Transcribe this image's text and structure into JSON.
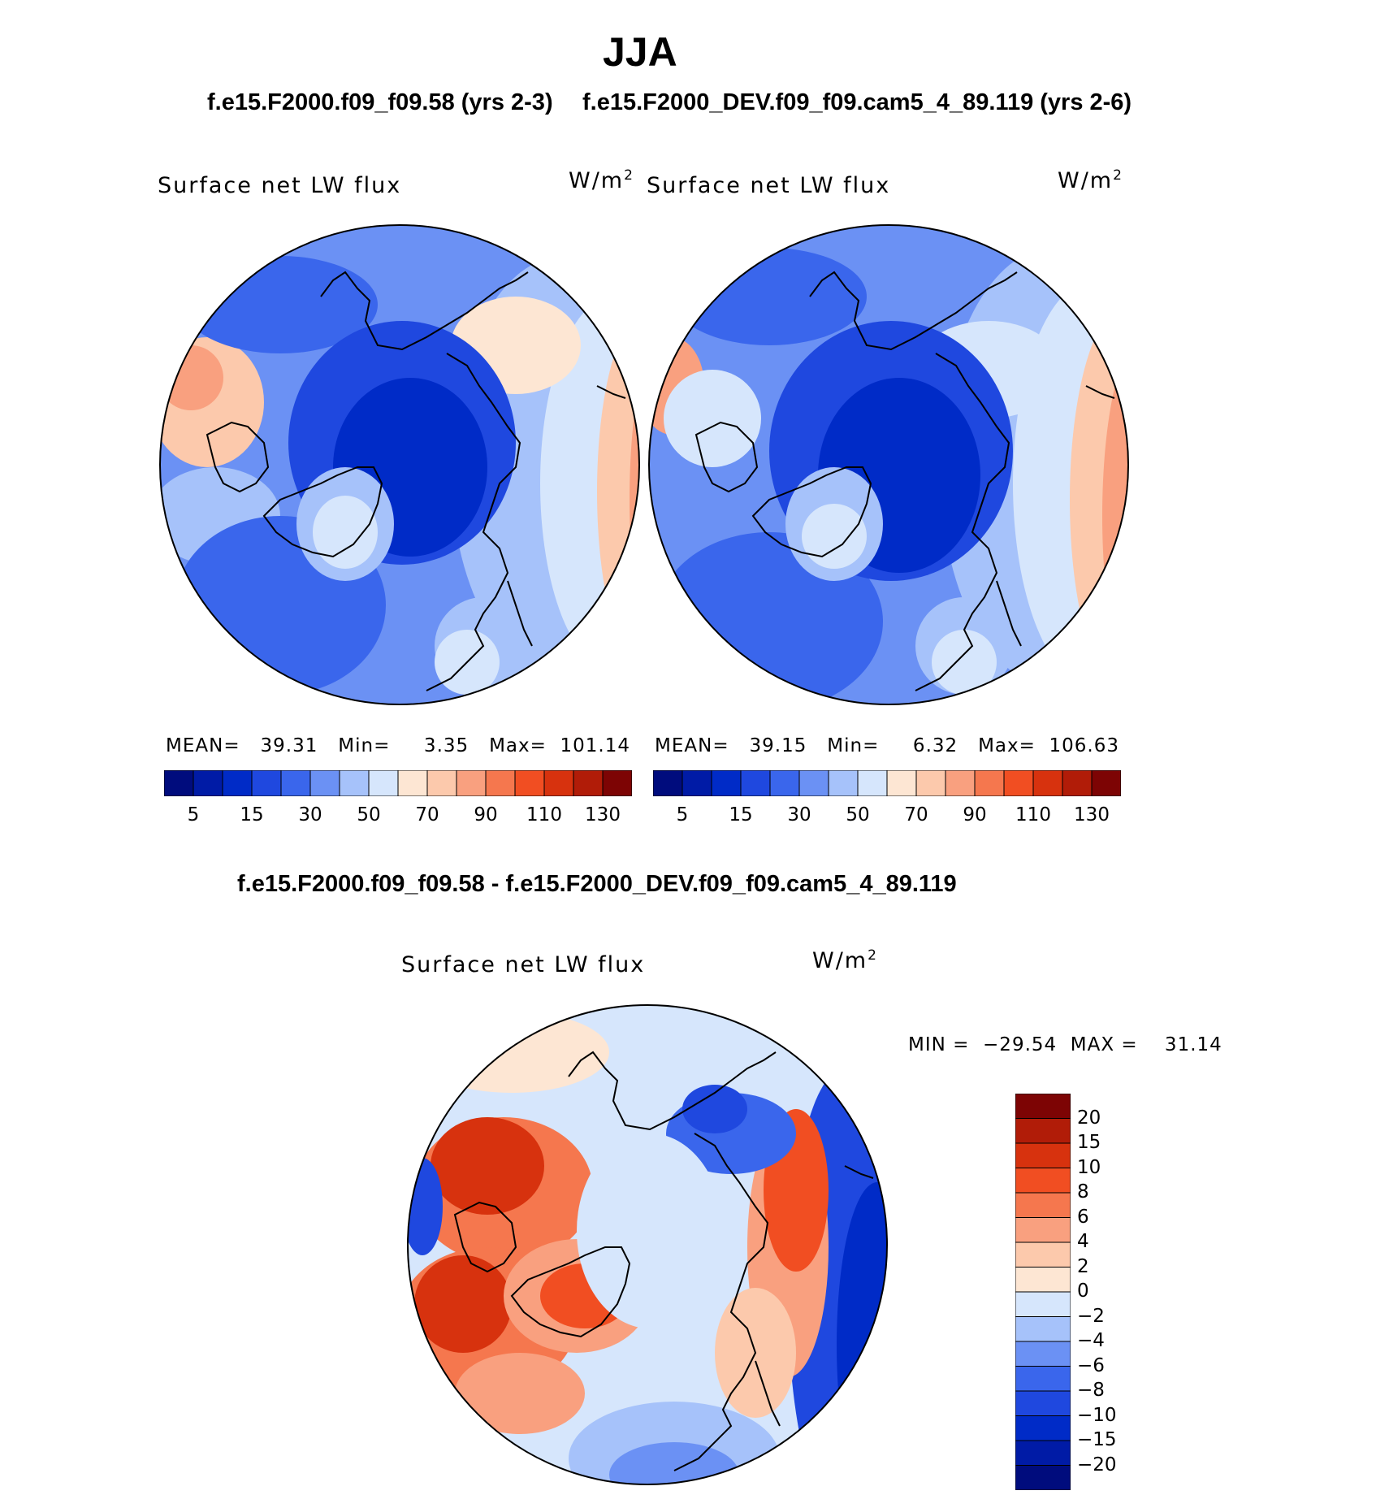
{
  "header": {
    "title": "JJA",
    "case1_title": "f.e15.F2000.f09_f09.58 (yrs 2-3)",
    "case2_title": "f.e15.F2000_DEV.f09_f09.cam5_4_89.119 (yrs 2-6)",
    "diff_title": "f.e15.F2000.f09_f09.58 - f.e15.F2000_DEV.f09_f09.cam5_4_89.119"
  },
  "panels": [
    {
      "variable": "Surface net LW flux",
      "units": "W/m",
      "units_exp": "2",
      "stats": "MEAN=   39.31   Min=     3.35   Max=  101.14"
    },
    {
      "variable": "Surface net LW flux",
      "units": "W/m",
      "units_exp": "2",
      "stats": "MEAN=   39.15   Min=     6.32   Max=  106.63"
    }
  ],
  "diff_panel": {
    "variable": "Surface net LW flux",
    "units": "W/m",
    "units_exp": "2",
    "stats": "MIN =  −29.54  MAX =    31.14"
  },
  "colorbar_abs": {
    "colors": [
      "#000c7d",
      "#001ba6",
      "#002bc7",
      "#1f48df",
      "#3a66ec",
      "#6b91f4",
      "#a6c2fa",
      "#d6e6fc",
      "#fde6d3",
      "#fcc9ac",
      "#f9a07f",
      "#f5774e",
      "#f14e22",
      "#d7320e",
      "#b11c08",
      "#7d0404"
    ],
    "ticks": [
      "5",
      "15",
      "30",
      "50",
      "70",
      "90",
      "110",
      "130"
    ]
  },
  "colorbar_diff": {
    "colors": [
      "#7d0404",
      "#b11c08",
      "#d7320e",
      "#f14e22",
      "#f5774e",
      "#f9a07f",
      "#fcc9ac",
      "#fde6d3",
      "#d6e6fc",
      "#a6c2fa",
      "#6b91f4",
      "#3a66ec",
      "#1f48df",
      "#002bc7",
      "#001ba6",
      "#000c7d"
    ],
    "ticks": [
      "20",
      "15",
      "10",
      "8",
      "6",
      "4",
      "2",
      "0",
      "−2",
      "−4",
      "−6",
      "−8",
      "−10",
      "−15",
      "−20"
    ]
  }
}
